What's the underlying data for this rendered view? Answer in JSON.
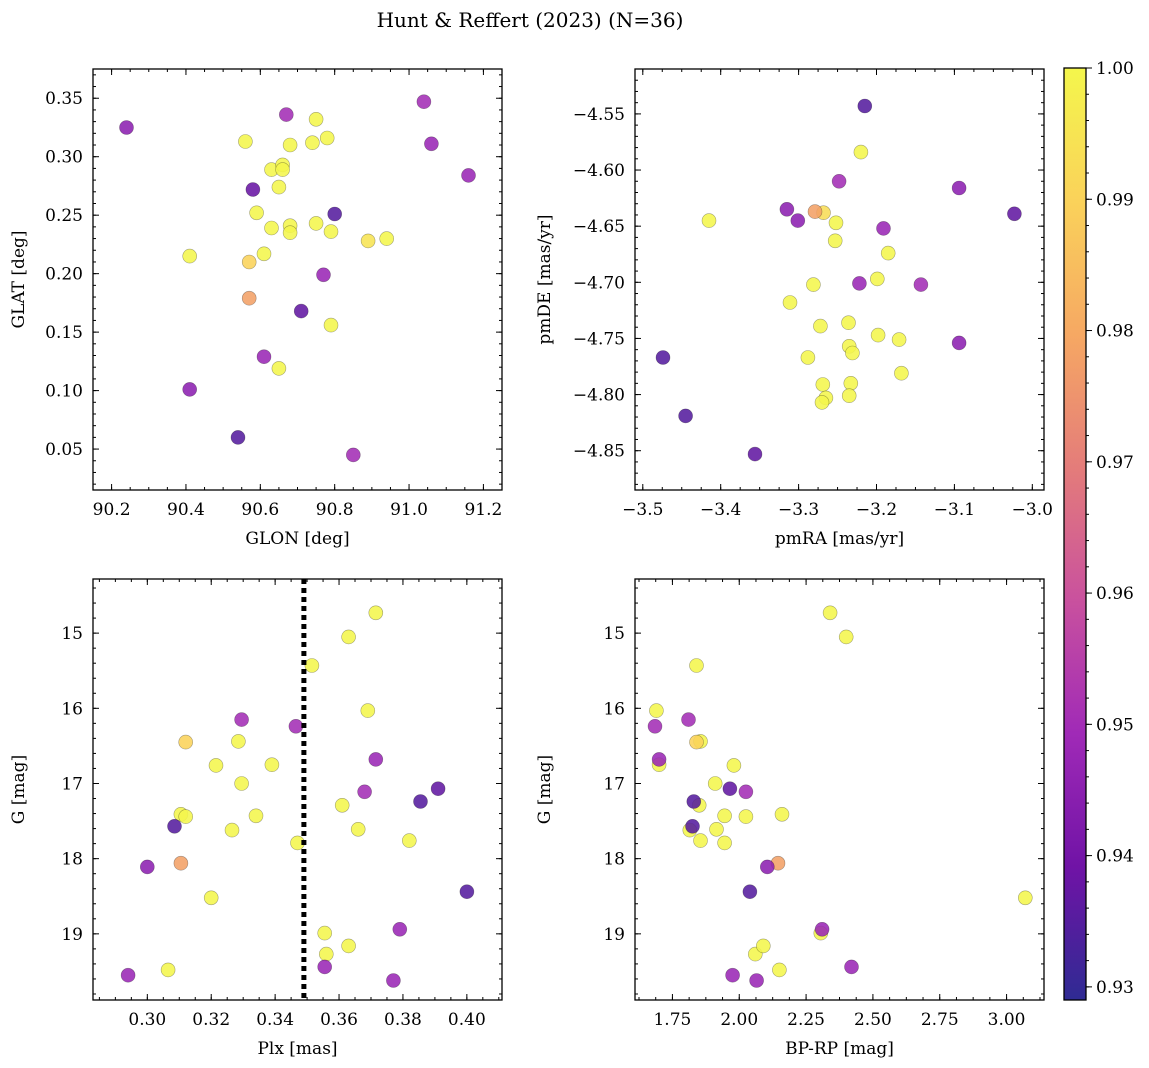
{
  "title": "Hunt & Reffert (2023) (N=36)",
  "colorbar": {
    "ticks": [
      0.93,
      0.94,
      0.95,
      0.96,
      0.97,
      0.98,
      0.99,
      1.0
    ],
    "tick_labels": [
      "0.93",
      "0.94",
      "0.95",
      "0.96",
      "0.97",
      "0.98",
      "0.99",
      "1.00"
    ],
    "range": [
      0.929,
      1.0
    ],
    "colormap": "plasma"
  },
  "chart_data": [
    {
      "type": "scatter",
      "xlabel": "GLON [deg]",
      "ylabel": "GLAT [deg]",
      "xlim": [
        90.15,
        91.25
      ],
      "ylim": [
        0.015,
        0.375
      ],
      "xticks": [
        90.2,
        90.4,
        90.6,
        90.8,
        91.0,
        91.2
      ],
      "xtick_labels": [
        "90.2",
        "90.4",
        "90.6",
        "90.8",
        "91.0",
        "91.2"
      ],
      "yticks": [
        0.05,
        0.1,
        0.15,
        0.2,
        0.25,
        0.3,
        0.35
      ],
      "ytick_labels": [
        "0.05",
        "0.10",
        "0.15",
        "0.20",
        "0.25",
        "0.30",
        "0.35"
      ],
      "points": [
        {
          "x": 90.24,
          "y": 0.325,
          "c": 0.945
        },
        {
          "x": 90.41,
          "y": 0.101,
          "c": 0.945
        },
        {
          "x": 90.54,
          "y": 0.06,
          "c": 0.935
        },
        {
          "x": 90.56,
          "y": 0.313,
          "c": 1.0
        },
        {
          "x": 90.58,
          "y": 0.272,
          "c": 0.938
        },
        {
          "x": 90.67,
          "y": 0.336,
          "c": 0.95
        },
        {
          "x": 90.63,
          "y": 0.289,
          "c": 1.0
        },
        {
          "x": 90.66,
          "y": 0.293,
          "c": 1.0
        },
        {
          "x": 90.66,
          "y": 0.289,
          "c": 1.0
        },
        {
          "x": 90.65,
          "y": 0.274,
          "c": 1.0
        },
        {
          "x": 90.68,
          "y": 0.31,
          "c": 1.0
        },
        {
          "x": 90.59,
          "y": 0.252,
          "c": 1.0
        },
        {
          "x": 90.63,
          "y": 0.239,
          "c": 1.0
        },
        {
          "x": 90.68,
          "y": 0.241,
          "c": 1.0
        },
        {
          "x": 90.68,
          "y": 0.235,
          "c": 1.0
        },
        {
          "x": 90.41,
          "y": 0.215,
          "c": 1.0
        },
        {
          "x": 90.57,
          "y": 0.21,
          "c": 0.99
        },
        {
          "x": 90.61,
          "y": 0.217,
          "c": 1.0
        },
        {
          "x": 90.57,
          "y": 0.179,
          "c": 0.978
        },
        {
          "x": 90.61,
          "y": 0.129,
          "c": 0.948
        },
        {
          "x": 90.65,
          "y": 0.119,
          "c": 1.0
        },
        {
          "x": 90.71,
          "y": 0.168,
          "c": 0.937
        },
        {
          "x": 90.74,
          "y": 0.312,
          "c": 1.0
        },
        {
          "x": 90.75,
          "y": 0.332,
          "c": 1.0
        },
        {
          "x": 90.78,
          "y": 0.316,
          "c": 1.0
        },
        {
          "x": 90.75,
          "y": 0.243,
          "c": 1.0
        },
        {
          "x": 90.79,
          "y": 0.236,
          "c": 1.0
        },
        {
          "x": 90.8,
          "y": 0.251,
          "c": 0.935
        },
        {
          "x": 90.77,
          "y": 0.199,
          "c": 0.948
        },
        {
          "x": 90.79,
          "y": 0.156,
          "c": 1.0
        },
        {
          "x": 90.85,
          "y": 0.045,
          "c": 0.95
        },
        {
          "x": 90.89,
          "y": 0.228,
          "c": 0.995
        },
        {
          "x": 90.94,
          "y": 0.23,
          "c": 1.0
        },
        {
          "x": 91.04,
          "y": 0.347,
          "c": 0.95
        },
        {
          "x": 91.06,
          "y": 0.311,
          "c": 0.948
        },
        {
          "x": 91.16,
          "y": 0.284,
          "c": 0.948
        }
      ]
    },
    {
      "type": "scatter",
      "xlabel": "pmRA [mas/yr]",
      "ylabel": "pmDE [mas/yr]",
      "xlim": [
        -3.51,
        -2.985
      ],
      "ylim": [
        -4.885,
        -4.51
      ],
      "xticks": [
        -3.5,
        -3.4,
        -3.3,
        -3.2,
        -3.1,
        -3.0
      ],
      "xtick_labels": [
        "−3.5",
        "−3.4",
        "−3.3",
        "−3.2",
        "−3.1",
        "−3.0"
      ],
      "yticks": [
        -4.85,
        -4.8,
        -4.75,
        -4.7,
        -4.65,
        -4.6,
        -4.55
      ],
      "ytick_labels": [
        "−4.85",
        "−4.80",
        "−4.75",
        "−4.70",
        "−4.65",
        "−4.60",
        "−4.55"
      ],
      "points": [
        {
          "x": -3.474,
          "y": -4.767,
          "c": 0.935
        },
        {
          "x": -3.445,
          "y": -4.819,
          "c": 0.935
        },
        {
          "x": -3.415,
          "y": -4.645,
          "c": 1.0
        },
        {
          "x": -3.356,
          "y": -4.853,
          "c": 0.937
        },
        {
          "x": -3.315,
          "y": -4.635,
          "c": 0.945
        },
        {
          "x": -3.301,
          "y": -4.645,
          "c": 0.945
        },
        {
          "x": -3.279,
          "y": -4.637,
          "c": 0.978
        },
        {
          "x": -3.268,
          "y": -4.638,
          "c": 0.993
        },
        {
          "x": -3.252,
          "y": -4.647,
          "c": 1.0
        },
        {
          "x": -3.253,
          "y": -4.663,
          "c": 1.0
        },
        {
          "x": -3.248,
          "y": -4.61,
          "c": 0.95
        },
        {
          "x": -3.22,
          "y": -4.584,
          "c": 1.0
        },
        {
          "x": -3.215,
          "y": -4.543,
          "c": 0.935
        },
        {
          "x": -3.311,
          "y": -4.718,
          "c": 1.0
        },
        {
          "x": -3.281,
          "y": -4.702,
          "c": 1.0
        },
        {
          "x": -3.272,
          "y": -4.739,
          "c": 1.0
        },
        {
          "x": -3.288,
          "y": -4.767,
          "c": 1.0
        },
        {
          "x": -3.269,
          "y": -4.791,
          "c": 1.0
        },
        {
          "x": -3.265,
          "y": -4.803,
          "c": 1.0
        },
        {
          "x": -3.27,
          "y": -4.807,
          "c": 1.0
        },
        {
          "x": -3.236,
          "y": -4.736,
          "c": 1.0
        },
        {
          "x": -3.235,
          "y": -4.757,
          "c": 1.0
        },
        {
          "x": -3.231,
          "y": -4.763,
          "c": 1.0
        },
        {
          "x": -3.233,
          "y": -4.79,
          "c": 1.0
        },
        {
          "x": -3.235,
          "y": -4.801,
          "c": 1.0
        },
        {
          "x": -3.222,
          "y": -4.701,
          "c": 0.948
        },
        {
          "x": -3.199,
          "y": -4.697,
          "c": 1.0
        },
        {
          "x": -3.191,
          "y": -4.652,
          "c": 0.948
        },
        {
          "x": -3.185,
          "y": -4.674,
          "c": 1.0
        },
        {
          "x": -3.198,
          "y": -4.747,
          "c": 1.0
        },
        {
          "x": -3.171,
          "y": -4.751,
          "c": 1.0
        },
        {
          "x": -3.168,
          "y": -4.781,
          "c": 1.0
        },
        {
          "x": -3.143,
          "y": -4.702,
          "c": 0.95
        },
        {
          "x": -3.094,
          "y": -4.616,
          "c": 0.945
        },
        {
          "x": -3.094,
          "y": -4.754,
          "c": 0.945
        },
        {
          "x": -3.023,
          "y": -4.639,
          "c": 0.937
        }
      ]
    },
    {
      "type": "scatter",
      "xlabel": "Plx [mas]",
      "ylabel": "G [mag]",
      "xlim": [
        0.283,
        0.411
      ],
      "ylim": [
        19.88,
        14.28
      ],
      "y_inverted": true,
      "vline": {
        "x": 0.349,
        "style": "dotted",
        "color": "#000000"
      },
      "xticks": [
        0.3,
        0.32,
        0.34,
        0.36,
        0.38,
        0.4
      ],
      "xtick_labels": [
        "0.30",
        "0.32",
        "0.34",
        "0.36",
        "0.38",
        "0.40"
      ],
      "yticks": [
        15,
        16,
        17,
        18,
        19
      ],
      "ytick_labels": [
        "15",
        "16",
        "17",
        "18",
        "19"
      ],
      "points": [
        {
          "x": 0.294,
          "y": 19.55,
          "c": 0.948
        },
        {
          "x": 0.3,
          "y": 18.11,
          "c": 0.945
        },
        {
          "x": 0.3065,
          "y": 19.48,
          "c": 1.0
        },
        {
          "x": 0.3085,
          "y": 17.57,
          "c": 0.935
        },
        {
          "x": 0.3105,
          "y": 17.41,
          "c": 1.0
        },
        {
          "x": 0.312,
          "y": 17.44,
          "c": 1.0
        },
        {
          "x": 0.3105,
          "y": 18.06,
          "c": 0.978
        },
        {
          "x": 0.312,
          "y": 16.45,
          "c": 0.99
        },
        {
          "x": 0.32,
          "y": 18.52,
          "c": 1.0
        },
        {
          "x": 0.3215,
          "y": 16.76,
          "c": 1.0
        },
        {
          "x": 0.3265,
          "y": 17.62,
          "c": 1.0
        },
        {
          "x": 0.3285,
          "y": 16.44,
          "c": 1.0
        },
        {
          "x": 0.3295,
          "y": 17.0,
          "c": 1.0
        },
        {
          "x": 0.3295,
          "y": 16.15,
          "c": 0.95
        },
        {
          "x": 0.334,
          "y": 17.43,
          "c": 1.0
        },
        {
          "x": 0.339,
          "y": 16.75,
          "c": 1.0
        },
        {
          "x": 0.3465,
          "y": 16.24,
          "c": 0.95
        },
        {
          "x": 0.347,
          "y": 17.79,
          "c": 1.0
        },
        {
          "x": 0.3515,
          "y": 15.43,
          "c": 1.0
        },
        {
          "x": 0.3555,
          "y": 18.99,
          "c": 1.0
        },
        {
          "x": 0.356,
          "y": 19.27,
          "c": 1.0
        },
        {
          "x": 0.3555,
          "y": 19.44,
          "c": 0.948
        },
        {
          "x": 0.361,
          "y": 17.29,
          "c": 1.0
        },
        {
          "x": 0.363,
          "y": 15.05,
          "c": 1.0
        },
        {
          "x": 0.363,
          "y": 19.16,
          "c": 1.0
        },
        {
          "x": 0.366,
          "y": 17.61,
          "c": 1.0
        },
        {
          "x": 0.368,
          "y": 17.11,
          "c": 0.95
        },
        {
          "x": 0.369,
          "y": 16.03,
          "c": 1.0
        },
        {
          "x": 0.3715,
          "y": 14.73,
          "c": 1.0
        },
        {
          "x": 0.3715,
          "y": 16.68,
          "c": 0.948
        },
        {
          "x": 0.377,
          "y": 19.62,
          "c": 0.948
        },
        {
          "x": 0.379,
          "y": 18.94,
          "c": 0.948
        },
        {
          "x": 0.382,
          "y": 17.76,
          "c": 1.0
        },
        {
          "x": 0.3855,
          "y": 17.24,
          "c": 0.935
        },
        {
          "x": 0.391,
          "y": 17.07,
          "c": 0.937
        },
        {
          "x": 0.4,
          "y": 18.44,
          "c": 0.935
        }
      ]
    },
    {
      "type": "scatter",
      "xlabel": "BP-RP [mag]",
      "ylabel": "G [mag]",
      "xlim": [
        1.61,
        3.14
      ],
      "ylim": [
        19.88,
        14.28
      ],
      "y_inverted": true,
      "xticks": [
        1.75,
        2.0,
        2.25,
        2.5,
        2.75,
        3.0
      ],
      "xtick_labels": [
        "1.75",
        "2.00",
        "2.25",
        "2.50",
        "2.75",
        "3.00"
      ],
      "yticks": [
        15,
        16,
        17,
        18,
        19
      ],
      "ytick_labels": [
        "15",
        "16",
        "17",
        "18",
        "19"
      ],
      "points": [
        {
          "x": 1.69,
          "y": 16.03,
          "c": 1.0
        },
        {
          "x": 1.685,
          "y": 16.24,
          "c": 0.95
        },
        {
          "x": 1.7,
          "y": 16.68,
          "c": 0.948
        },
        {
          "x": 1.7,
          "y": 16.75,
          "c": 1.0
        },
        {
          "x": 1.81,
          "y": 16.15,
          "c": 0.95
        },
        {
          "x": 1.84,
          "y": 15.43,
          "c": 1.0
        },
        {
          "x": 1.84,
          "y": 16.45,
          "c": 0.99
        },
        {
          "x": 1.855,
          "y": 16.44,
          "c": 1.0
        },
        {
          "x": 1.83,
          "y": 17.24,
          "c": 0.935
        },
        {
          "x": 1.85,
          "y": 17.29,
          "c": 1.0
        },
        {
          "x": 1.825,
          "y": 17.57,
          "c": 0.935
        },
        {
          "x": 1.815,
          "y": 17.62,
          "c": 1.0
        },
        {
          "x": 1.855,
          "y": 17.76,
          "c": 1.0
        },
        {
          "x": 1.91,
          "y": 17.0,
          "c": 1.0
        },
        {
          "x": 1.915,
          "y": 17.61,
          "c": 1.0
        },
        {
          "x": 1.945,
          "y": 17.43,
          "c": 1.0
        },
        {
          "x": 1.945,
          "y": 17.79,
          "c": 1.0
        },
        {
          "x": 1.965,
          "y": 17.07,
          "c": 0.937
        },
        {
          "x": 1.98,
          "y": 16.76,
          "c": 1.0
        },
        {
          "x": 1.975,
          "y": 19.55,
          "c": 0.948
        },
        {
          "x": 2.025,
          "y": 17.11,
          "c": 0.95
        },
        {
          "x": 2.025,
          "y": 17.44,
          "c": 1.0
        },
        {
          "x": 2.04,
          "y": 18.44,
          "c": 0.935
        },
        {
          "x": 2.06,
          "y": 19.27,
          "c": 1.0
        },
        {
          "x": 2.065,
          "y": 19.62,
          "c": 0.948
        },
        {
          "x": 2.09,
          "y": 19.16,
          "c": 1.0
        },
        {
          "x": 2.105,
          "y": 18.11,
          "c": 0.945
        },
        {
          "x": 2.145,
          "y": 18.06,
          "c": 0.978
        },
        {
          "x": 2.15,
          "y": 19.48,
          "c": 1.0
        },
        {
          "x": 2.16,
          "y": 17.41,
          "c": 1.0
        },
        {
          "x": 2.31,
          "y": 18.94,
          "c": 0.948
        },
        {
          "x": 2.305,
          "y": 18.99,
          "c": 1.0
        },
        {
          "x": 2.34,
          "y": 14.73,
          "c": 1.0
        },
        {
          "x": 2.4,
          "y": 15.05,
          "c": 1.0
        },
        {
          "x": 2.42,
          "y": 19.44,
          "c": 0.948
        },
        {
          "x": 3.07,
          "y": 18.52,
          "c": 1.0
        }
      ]
    }
  ]
}
